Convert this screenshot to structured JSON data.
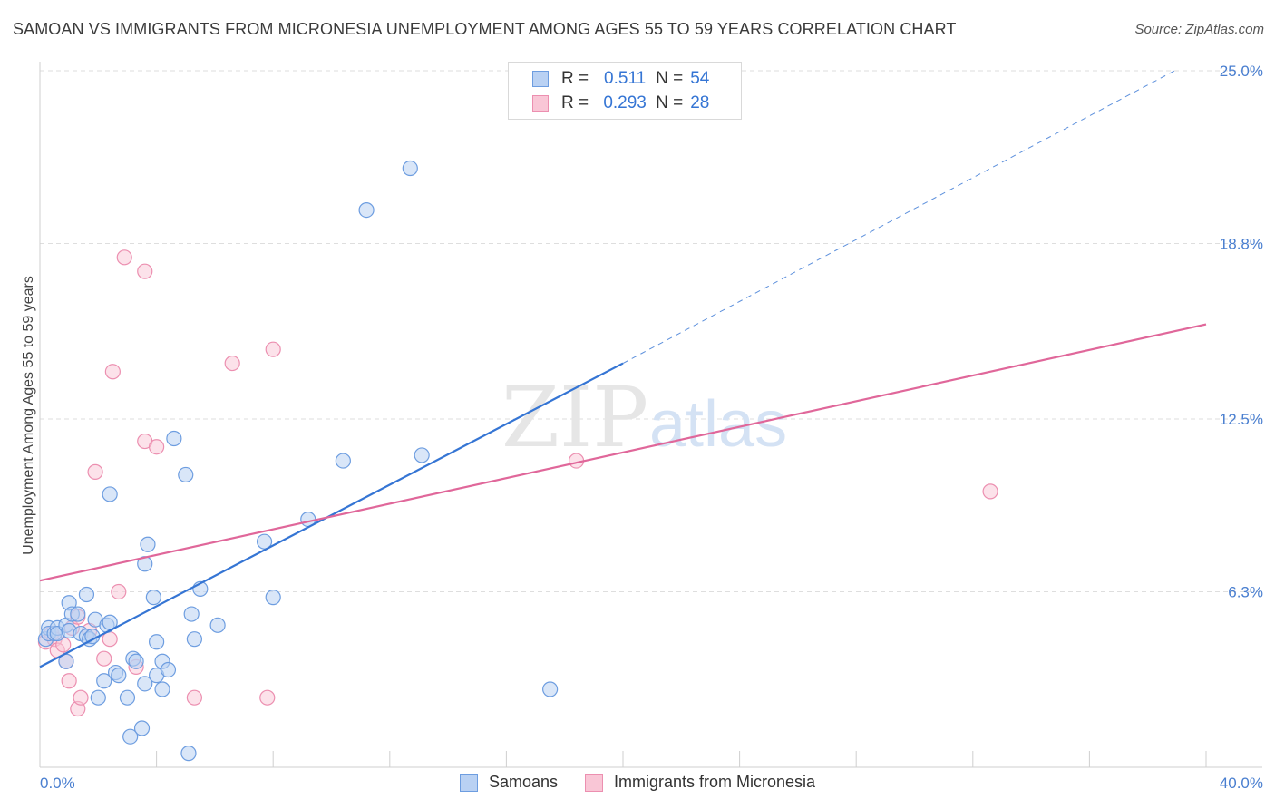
{
  "title": "SAMOAN VS IMMIGRANTS FROM MICRONESIA UNEMPLOYMENT AMONG AGES 55 TO 59 YEARS CORRELATION CHART",
  "source": "Source: ZipAtlas.com",
  "watermark": {
    "zip": "ZIP",
    "atlas": "atlas"
  },
  "legend": {
    "rows": [
      {
        "r_label": "R =",
        "r_value": "0.511",
        "n_label": "N =",
        "n_value": "54",
        "fill": "#b9d1f3",
        "stroke": "#6d9de0"
      },
      {
        "r_label": "R =",
        "r_value": "0.293",
        "n_label": "N =",
        "n_value": "28",
        "fill": "#f9c6d6",
        "stroke": "#ec8fb0"
      }
    ]
  },
  "bottom_legend": {
    "samoans": "Samoans",
    "micronesia": "Immigrants from Micronesia"
  },
  "chart_data": {
    "type": "scatter",
    "title": "SAMOAN VS IMMIGRANTS FROM MICRONESIA UNEMPLOYMENT AMONG AGES 55 TO 59 YEARS CORRELATION CHART",
    "xlabel": "",
    "ylabel": "Unemployment Among Ages 55 to 59 years",
    "xlim": [
      0,
      40
    ],
    "ylim": [
      0,
      25
    ],
    "x_tick_labels": [
      "0.0%",
      "40.0%"
    ],
    "y_ticks": [
      6.3,
      12.5,
      18.8,
      25.0
    ],
    "y_tick_labels": [
      "6.3%",
      "12.5%",
      "18.8%",
      "25.0%"
    ],
    "grid": true,
    "legend_position": "top-center",
    "colors": {
      "samoans": "#3575d4",
      "micronesia": "#e0679a"
    },
    "series": [
      {
        "name": "Samoans",
        "R": 0.511,
        "N": 54,
        "trend": {
          "x": [
            0,
            20
          ],
          "y": [
            3.6,
            14.5
          ],
          "dashed_to": [
            40,
            25.6
          ]
        },
        "points": [
          [
            0.2,
            4.6
          ],
          [
            0.3,
            5.0
          ],
          [
            0.3,
            4.8
          ],
          [
            0.5,
            4.8
          ],
          [
            0.6,
            5.0
          ],
          [
            0.6,
            4.8
          ],
          [
            0.9,
            3.8
          ],
          [
            0.9,
            5.1
          ],
          [
            1.0,
            4.9
          ],
          [
            1.0,
            5.9
          ],
          [
            1.1,
            5.5
          ],
          [
            1.3,
            5.5
          ],
          [
            1.4,
            4.8
          ],
          [
            1.6,
            6.2
          ],
          [
            1.6,
            4.7
          ],
          [
            1.7,
            4.6
          ],
          [
            1.8,
            4.7
          ],
          [
            1.9,
            5.3
          ],
          [
            2.0,
            2.5
          ],
          [
            2.2,
            3.1
          ],
          [
            2.3,
            5.1
          ],
          [
            2.4,
            5.2
          ],
          [
            2.4,
            9.8
          ],
          [
            2.6,
            3.4
          ],
          [
            2.7,
            3.3
          ],
          [
            3.0,
            2.5
          ],
          [
            3.1,
            1.1
          ],
          [
            3.2,
            3.9
          ],
          [
            3.3,
            3.8
          ],
          [
            3.5,
            1.4
          ],
          [
            3.6,
            7.3
          ],
          [
            3.6,
            3.0
          ],
          [
            3.7,
            8.0
          ],
          [
            3.9,
            6.1
          ],
          [
            4.0,
            3.3
          ],
          [
            4.0,
            4.5
          ],
          [
            4.2,
            2.8
          ],
          [
            4.2,
            3.8
          ],
          [
            4.4,
            3.5
          ],
          [
            4.6,
            11.8
          ],
          [
            5.0,
            10.5
          ],
          [
            5.1,
            0.5
          ],
          [
            5.2,
            5.5
          ],
          [
            5.3,
            4.6
          ],
          [
            5.5,
            6.4
          ],
          [
            6.1,
            5.1
          ],
          [
            7.7,
            8.1
          ],
          [
            8.0,
            6.1
          ],
          [
            9.2,
            8.9
          ],
          [
            10.4,
            11.0
          ],
          [
            11.2,
            20.0
          ],
          [
            12.7,
            21.5
          ],
          [
            13.1,
            11.2
          ],
          [
            17.5,
            2.8
          ]
        ]
      },
      {
        "name": "Immigrants from Micronesia",
        "R": 0.293,
        "N": 28,
        "trend": {
          "x": [
            0,
            40
          ],
          "y": [
            6.7,
            15.9
          ]
        },
        "points": [
          [
            0.2,
            4.5
          ],
          [
            0.4,
            4.8
          ],
          [
            0.5,
            4.6
          ],
          [
            0.6,
            4.2
          ],
          [
            0.8,
            4.4
          ],
          [
            0.9,
            3.8
          ],
          [
            1.0,
            3.1
          ],
          [
            1.1,
            5.0
          ],
          [
            1.3,
            5.4
          ],
          [
            1.3,
            2.1
          ],
          [
            1.4,
            2.5
          ],
          [
            1.7,
            4.9
          ],
          [
            1.9,
            10.6
          ],
          [
            2.2,
            3.9
          ],
          [
            2.4,
            4.6
          ],
          [
            2.5,
            14.2
          ],
          [
            2.7,
            6.3
          ],
          [
            2.9,
            18.3
          ],
          [
            3.3,
            3.6
          ],
          [
            3.6,
            17.8
          ],
          [
            3.6,
            11.7
          ],
          [
            4.0,
            11.5
          ],
          [
            5.3,
            2.5
          ],
          [
            6.6,
            14.5
          ],
          [
            7.8,
            2.5
          ],
          [
            8.0,
            15.0
          ],
          [
            18.4,
            11.0
          ],
          [
            32.6,
            9.9
          ]
        ]
      }
    ]
  }
}
